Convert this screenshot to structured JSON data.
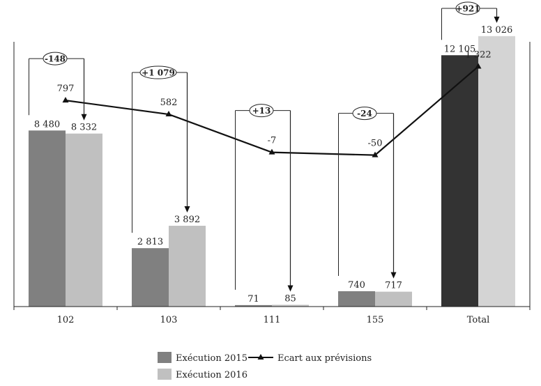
{
  "chart_data": {
    "type": "bar",
    "categories": [
      "102",
      "103",
      "111",
      "155",
      "Total"
    ],
    "series": [
      {
        "name": "Exécution 2015",
        "values": [
          8480,
          2813,
          71,
          740,
          12105
        ]
      },
      {
        "name": "Exécution 2016",
        "values": [
          8332,
          3892,
          85,
          717,
          13026
        ]
      },
      {
        "name": "Ecart aux prévisions",
        "type": "line",
        "values": [
          797,
          582,
          -7,
          -50,
          1322
        ]
      }
    ],
    "value_labels": {
      "Exécution 2015": [
        "8 480",
        "2 813",
        "71",
        "740",
        "12 105"
      ],
      "Exécution 2016": [
        "8 332",
        "3 892",
        "85",
        "717",
        "13 026"
      ],
      "Ecart aux prévisions": [
        "797",
        "582",
        "-7",
        "-50",
        "1 322"
      ]
    },
    "deltas": [
      "-148",
      "+1 079",
      "+13",
      "-24",
      "+921"
    ],
    "colors": {
      "Exécution 2015": "#808080",
      "Exécution 2016": "#c0c0c0",
      "total_2015": "#333333",
      "total_2016": "#d4d4d4",
      "line": "#111111"
    },
    "legend_position": "bottom",
    "grid": false
  }
}
